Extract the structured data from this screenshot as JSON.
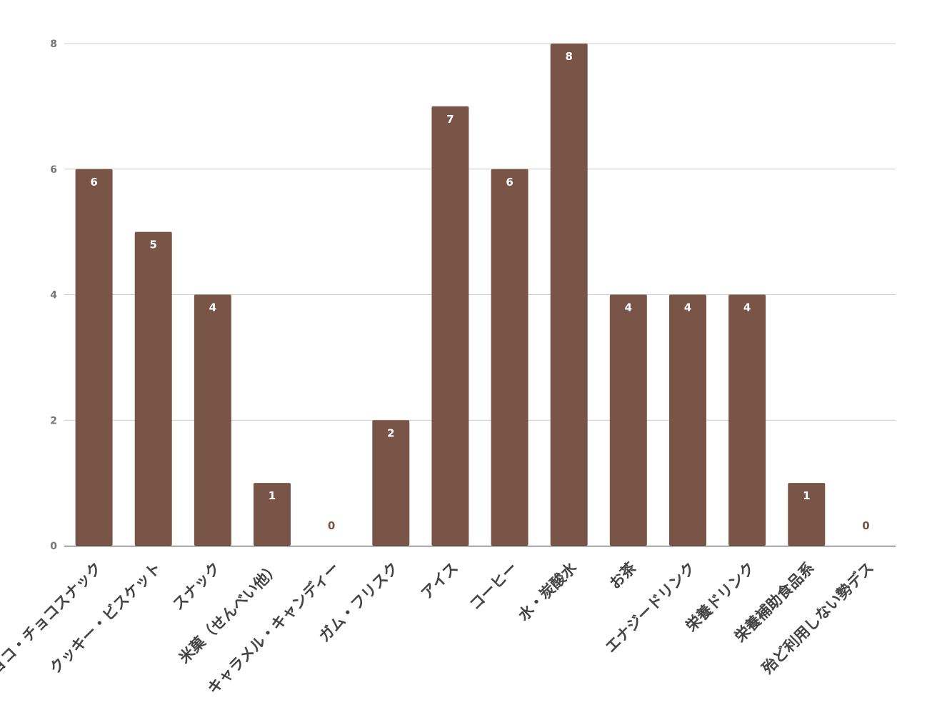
{
  "chart_data": {
    "type": "bar",
    "categories": [
      "チョコ・チョコスナック",
      "クッキー・ビスケット",
      "スナック",
      "米菓（せんべい他）",
      "キャラメル・キャンディー",
      "ガム・フリスク",
      "アイス",
      "コーヒー",
      "水・炭酸水",
      "お茶",
      "エナジードリンク",
      "栄養ドリンク",
      "栄養補助食品系",
      "殆ど利用しない勢デス"
    ],
    "values": [
      6,
      5,
      4,
      1,
      0,
      2,
      7,
      6,
      8,
      4,
      4,
      4,
      1,
      0
    ],
    "y_ticks": [
      "0",
      "2",
      "4",
      "6",
      "8"
    ],
    "ylim": [
      0,
      8
    ],
    "grid": true,
    "legend": "none",
    "colors": {
      "bar": "#795548",
      "grid": "#cccccc",
      "axis": "#333333",
      "tick_text": "#777777",
      "category_text": "#444444",
      "label_inside": "#ffffff",
      "label_outside": "#795548"
    }
  }
}
